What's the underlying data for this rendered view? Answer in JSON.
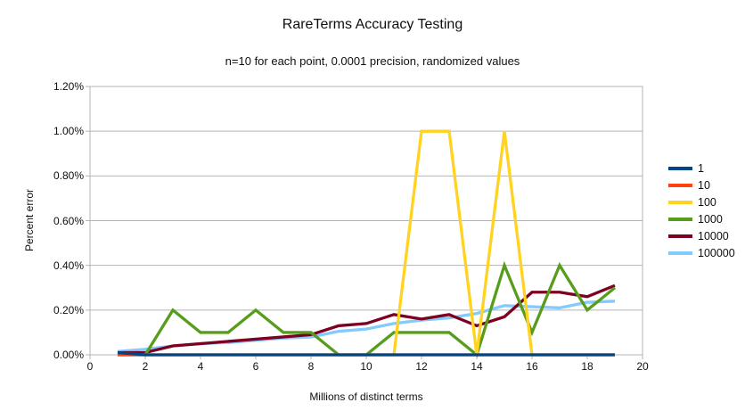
{
  "chart_data": {
    "type": "line",
    "title": "RareTerms Accuracy Testing",
    "subtitle": "n=10 for each point, 0.0001 precision, randomized values",
    "xlabel": "Millions of distinct terms",
    "ylabel": "Percent error",
    "xlim": [
      0,
      20
    ],
    "ylim": [
      0,
      1.2
    ],
    "y_unit": "percent",
    "grid": true,
    "legend_position": "right",
    "x_tick_labels": [
      "0",
      "2",
      "4",
      "6",
      "8",
      "10",
      "12",
      "14",
      "16",
      "18",
      "20"
    ],
    "x_tick_values": [
      0,
      2,
      4,
      6,
      8,
      10,
      12,
      14,
      16,
      18,
      20
    ],
    "y_tick_labels": [
      "0.00%",
      "0.20%",
      "0.40%",
      "0.60%",
      "0.80%",
      "1.00%",
      "1.20%"
    ],
    "y_tick_values": [
      0,
      0.2,
      0.4,
      0.6,
      0.8,
      1.0,
      1.2
    ],
    "x": [
      1,
      2,
      3,
      4,
      5,
      6,
      7,
      8,
      9,
      10,
      11,
      12,
      13,
      14,
      15,
      16,
      17,
      18,
      19
    ],
    "series": [
      {
        "name": "1",
        "color": "#004586",
        "values": [
          0.01,
          0,
          0,
          0,
          0,
          0,
          0,
          0,
          0,
          0,
          0,
          0,
          0,
          0,
          0,
          0,
          0,
          0,
          0
        ]
      },
      {
        "name": "10",
        "color": "#FF420E",
        "values": [
          0,
          0,
          0,
          0,
          0,
          0,
          0,
          0,
          0,
          0,
          0,
          0,
          0,
          0,
          0,
          0,
          0,
          0,
          0
        ]
      },
      {
        "name": "100",
        "color": "#FFD320",
        "values": [
          0,
          0,
          0,
          0,
          0,
          0,
          0,
          0,
          0,
          0,
          0,
          1.0,
          1.0,
          0,
          1.0,
          0,
          0,
          0,
          0
        ]
      },
      {
        "name": "1000",
        "color": "#579D1C",
        "values": [
          0,
          0,
          0.2,
          0.1,
          0.1,
          0.2,
          0.1,
          0.1,
          0,
          0,
          0.1,
          0.1,
          0.1,
          0,
          0.4,
          0.1,
          0.4,
          0.2,
          0.3
        ]
      },
      {
        "name": "10000",
        "color": "#7E0021",
        "values": [
          0.01,
          0.01,
          0.04,
          0.05,
          0.06,
          0.07,
          0.08,
          0.09,
          0.13,
          0.14,
          0.18,
          0.16,
          0.18,
          0.13,
          0.17,
          0.28,
          0.28,
          0.26,
          0.31
        ]
      },
      {
        "name": "100000",
        "color": "#83CAFF",
        "values": [
          0.015,
          0.025,
          0.04,
          0.05,
          0.055,
          0.065,
          0.075,
          0.08,
          0.105,
          0.115,
          0.14,
          0.155,
          0.165,
          0.185,
          0.22,
          0.215,
          0.21,
          0.235,
          0.24
        ]
      }
    ],
    "colors": {
      "gridline": "#b3b3b3",
      "plot_border": "#b3b3b3",
      "background": "#ffffff",
      "text": "#0f0f0f"
    }
  }
}
